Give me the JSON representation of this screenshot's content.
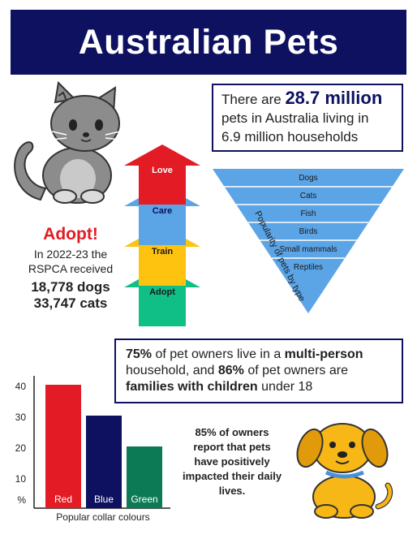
{
  "title": "Australian Pets",
  "stats": {
    "line1_prefix": "There are",
    "line1_big": "28.7 million",
    "line2": "pets in Australia living in",
    "line3": "6.9 million households"
  },
  "adopt": {
    "title": "Adopt!",
    "line1": "In 2022-23 the",
    "line2": "RSPCA received",
    "dogs": "18,778 dogs",
    "cats": "33,747 cats"
  },
  "arrows": [
    {
      "label": "Love",
      "color": "#e31b24",
      "text_color": "#ffffff"
    },
    {
      "label": "Care",
      "color": "#5ba4e6",
      "text_color": "#0d1160"
    },
    {
      "label": "Train",
      "color": "#fdc30f",
      "text_color": "#1a1a1a"
    },
    {
      "label": "Adopt",
      "color": "#0fbf86",
      "text_color": "#1a1a1a"
    }
  ],
  "pyramid": {
    "caption": "Popularity of pets by type",
    "items": [
      "Dogs",
      "Cats",
      "Fish",
      "Birds",
      "Small mammals",
      "Reptiles"
    ],
    "color": "#5ba4e6"
  },
  "info_box": {
    "p1_bold": "75%",
    "p1_text": " of pet owners live in a ",
    "p1_bold2": "multi-person",
    "p2_text": "household, and ",
    "p2_bold": "86%",
    "p2_text2": " of pet owners are",
    "p3_bold": "families with children",
    "p3_text": " under 18"
  },
  "quote": "85% of owners report that pets have positively impacted their daily lives.",
  "chart_data": {
    "type": "bar",
    "categories": [
      "Red",
      "Blue",
      "Green"
    ],
    "values": [
      40,
      30,
      20
    ],
    "colors": [
      "#e31b24",
      "#0d1160",
      "#0b7a55"
    ],
    "yticks": [
      "40",
      "30",
      "20",
      "10"
    ],
    "ylabel": "%",
    "xlabel": "Popular collar colours",
    "ylim": [
      0,
      45
    ],
    "grid": false
  }
}
